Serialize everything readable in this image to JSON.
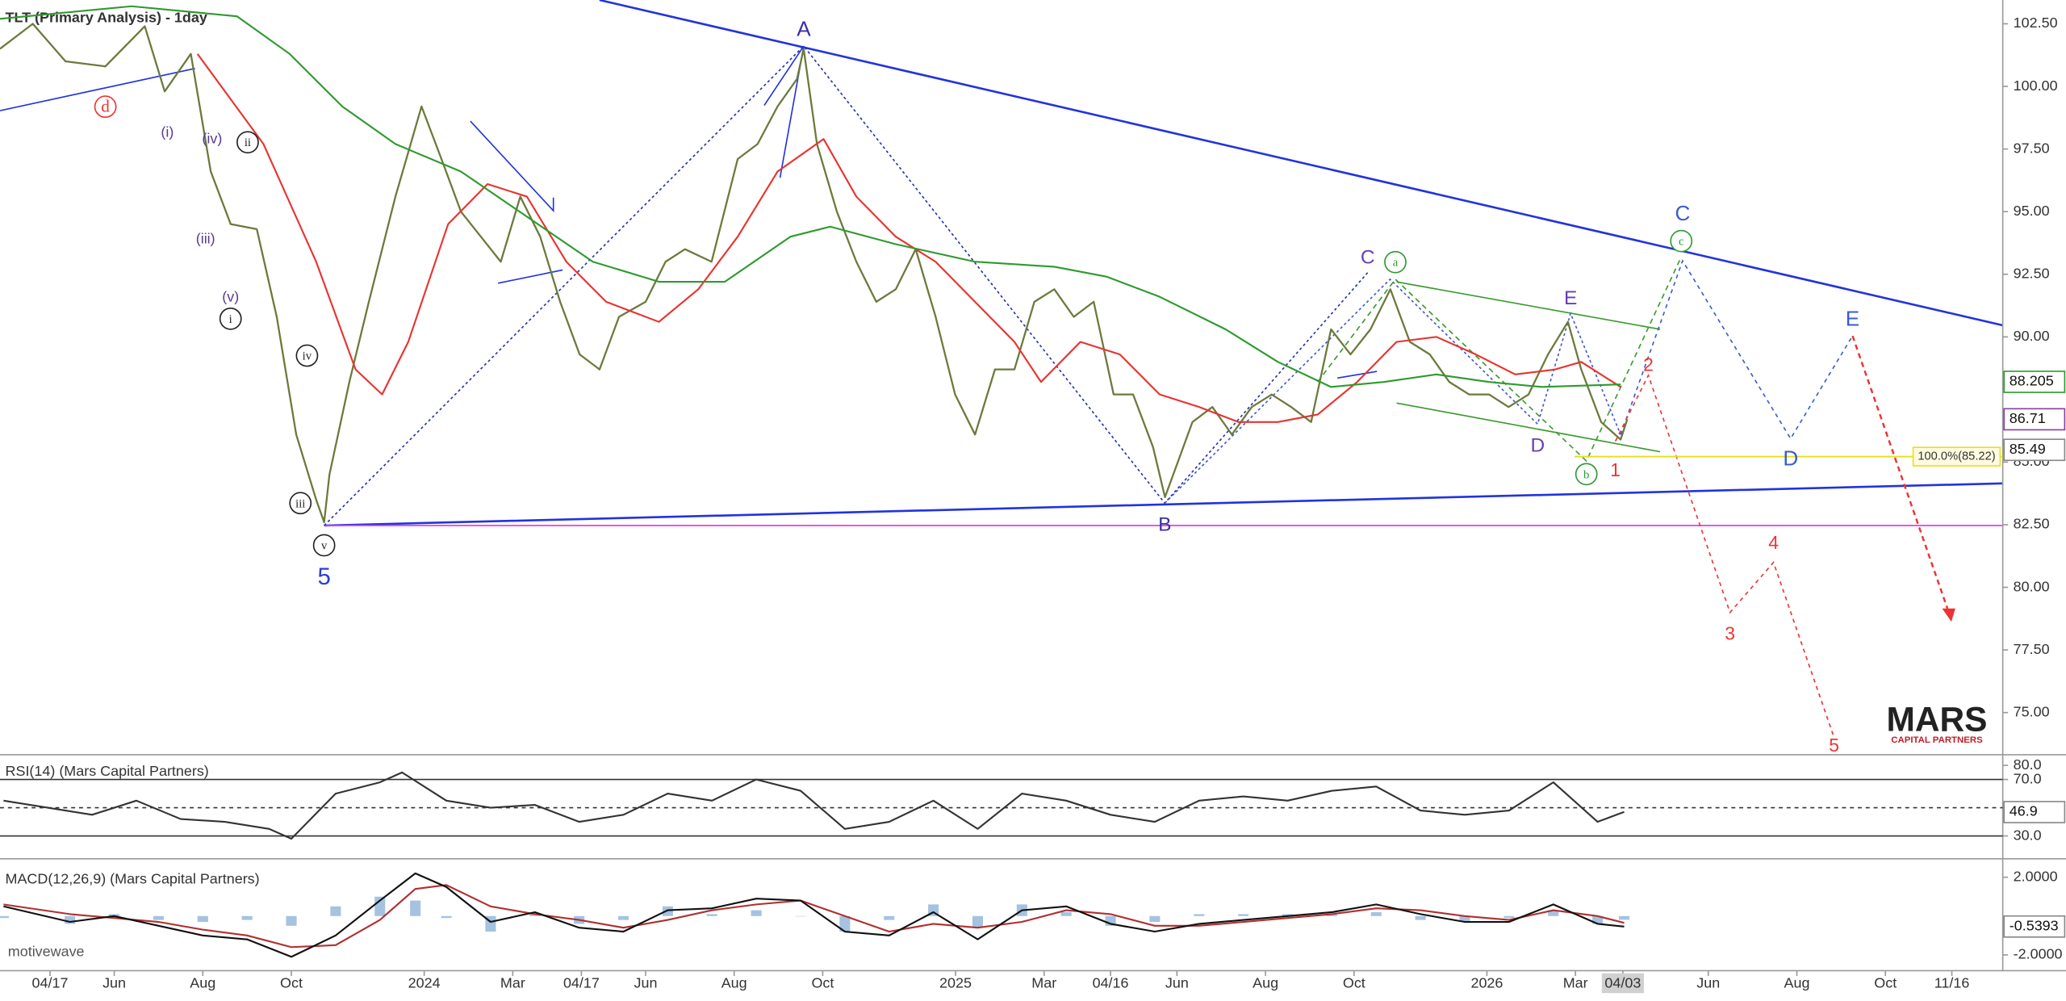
{
  "chart_data": [
    {
      "type": "line",
      "title": "TLT (Primary Analysis) - 1day",
      "xlim": [
        2.42,
        47.65
      ],
      "ylim": [
        73.37,
        103.45
      ],
      "yticks": [
        {
          "value": 102.5,
          "label": "102.50"
        },
        {
          "value": 100,
          "label": "100.00"
        },
        {
          "value": 97.5,
          "label": "97.50"
        },
        {
          "value": 95,
          "label": "95.00"
        },
        {
          "value": 92.5,
          "label": "92.50"
        },
        {
          "value": 90,
          "label": "90.00"
        },
        {
          "value": 85,
          "label": "85.00"
        },
        {
          "value": 82.5,
          "label": "82.50"
        },
        {
          "value": 80,
          "label": "80.00"
        },
        {
          "value": 77.5,
          "label": "77.50"
        },
        {
          "value": 75,
          "label": "75.00"
        }
      ],
      "series": [
        {
          "color": "#6b7a3c",
          "x": [
            2.42,
            3.16,
            3.9,
            4.8,
            5.69,
            6.14,
            6.73,
            7.18,
            7.63,
            8.22,
            8.67,
            9.11,
            9.56,
            9.74,
            9.86,
            10.31,
            10.75,
            11.35,
            11.94,
            12.39,
            12.83,
            13.28,
            13.73,
            14.17,
            14.62,
            15.07,
            15.51,
            15.96,
            16.4,
            17.0,
            17.45,
            17.89,
            18.49,
            19.08,
            19.53,
            19.98,
            20.42,
            20.57,
            20.87,
            21.32,
            21.76,
            22.21,
            22.65,
            23.1,
            23.55,
            23.99,
            24.44,
            24.89,
            25.33,
            25.78,
            26.23,
            26.67,
            27.12,
            27.57,
            28.01,
            28.46,
            28.73,
            29.35,
            29.8,
            30.24,
            30.69,
            31.14,
            31.58,
            32.03,
            32.48,
            32.92,
            33.37,
            33.82,
            34.26,
            34.71,
            35.15,
            35.6,
            36.05,
            36.49,
            36.94,
            37.38,
            37.83,
            38.13,
            38.58,
            39.02,
            39.17
          ],
          "values": [
            101.5,
            102.5,
            101.0,
            100.8,
            102.4,
            99.8,
            101.3,
            96.6,
            94.5,
            94.3,
            90.8,
            86.1,
            83.5,
            82.6,
            84.5,
            88.2,
            91.4,
            95.6,
            99.2,
            97.1,
            95.0,
            94.0,
            93.0,
            95.6,
            94.0,
            91.4,
            89.3,
            88.7,
            90.8,
            91.4,
            93.0,
            93.5,
            93.0,
            97.1,
            97.7,
            99.2,
            100.3,
            101.5,
            97.7,
            95.0,
            93.0,
            91.4,
            91.9,
            93.5,
            90.8,
            87.7,
            86.1,
            88.7,
            88.7,
            91.4,
            91.9,
            90.8,
            91.4,
            87.7,
            87.7,
            85.6,
            83.6,
            86.6,
            87.2,
            86.1,
            87.2,
            87.7,
            87.2,
            86.6,
            90.3,
            89.3,
            90.3,
            91.9,
            89.8,
            89.3,
            88.2,
            87.7,
            87.7,
            87.2,
            87.7,
            89.3,
            90.6,
            88.7,
            86.6,
            85.9,
            86.71
          ]
        },
        {
          "color": "#e8332e",
          "x": [
            6.88,
            8.37,
            9.56,
            10.45,
            11.05,
            11.64,
            12.54,
            13.43,
            14.32,
            15.21,
            16.11,
            17.3,
            18.19,
            19.08,
            19.98,
            21.02,
            21.76,
            22.65,
            23.55,
            24.44,
            25.33,
            25.93,
            26.82,
            27.71,
            28.61,
            29.5,
            30.39,
            31.28,
            32.18,
            33.07,
            33.96,
            34.86,
            35.75,
            36.64,
            37.54,
            38.13,
            39.02
          ],
          "values": [
            101.3,
            97.7,
            93,
            88.7,
            87.7,
            89.8,
            94.5,
            96.1,
            95.6,
            93,
            91.4,
            90.6,
            91.9,
            94,
            96.6,
            97.9,
            95.6,
            94,
            93,
            91.4,
            89.8,
            88.2,
            89.8,
            89.3,
            87.7,
            87.2,
            86.6,
            86.6,
            86.9,
            88.2,
            89.8,
            90,
            89.3,
            88.5,
            88.7,
            89,
            88
          ]
        },
        {
          "color": "#2e9a2e",
          "x": [
            2.42,
            5.39,
            7.77,
            8.96,
            10.15,
            11.35,
            12.83,
            14.32,
            15.81,
            17.3,
            18.79,
            20.27,
            21.17,
            22.65,
            24.44,
            26.23,
            27.42,
            28.61,
            30.1,
            31.28,
            32.48,
            33.67,
            34.86,
            36.05,
            37.24,
            39.02
          ],
          "values": [
            102.7,
            103.2,
            102.8,
            101.3,
            99.2,
            97.7,
            96.6,
            94.8,
            93,
            92.2,
            92.2,
            94,
            94.4,
            93.7,
            93,
            92.8,
            92.4,
            91.6,
            90.3,
            89,
            88,
            88.2,
            88.5,
            88.2,
            88,
            88.1
          ]
        }
      ],
      "levels": [
        {
          "value": 85.22,
          "label": "100.0%(85.22)",
          "color": "#e6e020"
        }
      ],
      "last_values": [
        {
          "value": 88.205,
          "color": "#2e9a2e"
        },
        {
          "value": 86.71,
          "color": "#8a3fa0"
        },
        {
          "value": 85.49,
          "color": "#888888"
        }
      ],
      "annotations": [
        "A",
        "B",
        "C",
        "D",
        "E",
        "5",
        "C",
        "D",
        "E",
        "1",
        "2",
        "3",
        "4",
        "5",
        "d",
        "(i)",
        "(iii)",
        "(iv)",
        "(v)",
        "ii",
        "i",
        "iv",
        "iii",
        "v",
        "a",
        "b",
        "c"
      ]
    },
    {
      "type": "line",
      "title": "RSI(14) (Mars Capital Partners)",
      "xlim": [
        2.42,
        47.65
      ],
      "ylim": [
        15.7,
        85.7
      ],
      "yticks": [
        {
          "value": 80,
          "label": "80.0"
        },
        {
          "value": 70,
          "label": "70.0"
        },
        {
          "value": 30,
          "label": "30.0"
        }
      ],
      "reference_lines": [
        {
          "value": 70,
          "dashed": false
        },
        {
          "value": 50,
          "dashed": true
        },
        {
          "value": 30,
          "dashed": false
        }
      ],
      "series": [
        {
          "color": "#333333",
          "x": [
            2.5,
            3.5,
            4.5,
            5.5,
            6.5,
            7.5,
            8.5,
            9.0,
            10,
            11,
            11.5,
            12.5,
            13.5,
            14.5,
            15.5,
            16.5,
            17.5,
            18.5,
            19.5,
            20.5,
            21.5,
            22.5,
            23.5,
            24.5,
            25.5,
            26.5,
            27.5,
            28.5,
            29.5,
            30.5,
            31.5,
            32.5,
            33.5,
            34.5,
            35.5,
            36.5,
            37.5,
            38.5,
            39.1
          ],
          "values": [
            55,
            50,
            45,
            55,
            42,
            40,
            35,
            28,
            60,
            68,
            75,
            55,
            50,
            52,
            40,
            45,
            60,
            55,
            70,
            62,
            35,
            40,
            55,
            35,
            60,
            55,
            45,
            40,
            55,
            58,
            55,
            62,
            65,
            48,
            45,
            48,
            68,
            40,
            47
          ]
        }
      ],
      "last_values": [
        {
          "value": 46.9,
          "color": "#888888"
        }
      ]
    },
    {
      "type": "line",
      "title": "MACD(12,26,9) (Mars Capital Partners)",
      "xlim": [
        2.42,
        47.65
      ],
      "ylim": [
        -2.68,
        2.75
      ],
      "yticks": [
        {
          "value": 2,
          "label": "2.0000"
        },
        {
          "value": -2,
          "label": "-2.0000"
        }
      ],
      "xticks": [
        {
          "value": 3.55,
          "label": "04/17"
        },
        {
          "value": 5,
          "label": "Jun"
        },
        {
          "value": 7,
          "label": "Aug"
        },
        {
          "value": 9,
          "label": "Oct"
        },
        {
          "value": 12,
          "label": "2024"
        },
        {
          "value": 14,
          "label": "Mar"
        },
        {
          "value": 15.55,
          "label": "04/17"
        },
        {
          "value": 17,
          "label": "Jun"
        },
        {
          "value": 19,
          "label": "Aug"
        },
        {
          "value": 21,
          "label": "Oct"
        },
        {
          "value": 24,
          "label": "2025"
        },
        {
          "value": 26,
          "label": "Mar"
        },
        {
          "value": 27.5,
          "label": "04/16"
        },
        {
          "value": 29,
          "label": "Jun"
        },
        {
          "value": 31,
          "label": "Aug"
        },
        {
          "value": 33,
          "label": "Oct"
        },
        {
          "value": 36,
          "label": "2026"
        },
        {
          "value": 38,
          "label": "Mar"
        },
        {
          "value": 39.07,
          "label": "04/03",
          "highlight": true
        },
        {
          "value": 41,
          "label": "Jun"
        },
        {
          "value": 43,
          "label": "Aug"
        },
        {
          "value": 45,
          "label": "Oct"
        },
        {
          "value": 46.5,
          "label": "11/16"
        }
      ],
      "series": [
        {
          "color": "#8fb3d9",
          "kind": "bar",
          "x": [
            2.5,
            4,
            5,
            6,
            7,
            8,
            9,
            10,
            11,
            11.8,
            12.5,
            13.5,
            14.5,
            15.5,
            16.5,
            17.5,
            18.5,
            19.5,
            20.5,
            21.5,
            22.5,
            23.5,
            24.5,
            25.5,
            26.5,
            27.5,
            28.5,
            29.5,
            30.5,
            31.5,
            32.5,
            33.5,
            34.5,
            35.5,
            36.5,
            37.5,
            38.5,
            39.1
          ],
          "values": [
            -0.1,
            -0.4,
            0.1,
            -0.2,
            -0.3,
            -0.2,
            -0.5,
            0.5,
            1.0,
            0.8,
            -0.1,
            -0.8,
            0.1,
            -0.4,
            -0.2,
            0.5,
            0.1,
            0.3,
            0,
            -0.8,
            -0.2,
            0.6,
            -0.6,
            0.6,
            0.2,
            -0.5,
            -0.3,
            0.1,
            0.1,
            0.1,
            0.1,
            0.2,
            -0.2,
            -0.3,
            -0.1,
            0.3,
            -0.4,
            -0.19
          ]
        },
        {
          "color": "#b03030",
          "x": [
            2.5,
            4,
            5,
            6,
            7,
            8,
            9,
            10,
            11,
            11.8,
            12.5,
            13.5,
            14.5,
            15.5,
            16.5,
            17.5,
            18.5,
            19.5,
            20.5,
            21.5,
            22.5,
            23.5,
            24.5,
            25.5,
            26.5,
            27.5,
            28.5,
            29.5,
            30.5,
            31.5,
            32.5,
            33.5,
            34.5,
            35.5,
            36.5,
            37.5,
            38.5,
            39.1
          ],
          "values": [
            0.6,
            0.1,
            -0.1,
            -0.3,
            -0.7,
            -1.0,
            -1.6,
            -1.5,
            -0.2,
            1.4,
            1.6,
            0.5,
            0.1,
            -0.2,
            -0.6,
            -0.2,
            0.3,
            0.6,
            0.8,
            0.0,
            -0.8,
            -0.4,
            -0.6,
            -0.3,
            0.3,
            0.1,
            -0.5,
            -0.5,
            -0.3,
            -0.1,
            0.1,
            0.4,
            0.3,
            0.0,
            -0.2,
            0.3,
            0.0,
            -0.35
          ]
        },
        {
          "color": "#111111",
          "x": [
            2.5,
            4,
            5,
            6,
            7,
            8,
            9,
            10,
            11,
            11.8,
            12.5,
            13.5,
            14.5,
            15.5,
            16.5,
            17.5,
            18.5,
            19.5,
            20.5,
            21.5,
            22.5,
            23.5,
            24.5,
            25.5,
            26.5,
            27.5,
            28.5,
            29.5,
            30.5,
            31.5,
            32.5,
            33.5,
            34.5,
            35.5,
            36.5,
            37.5,
            38.5,
            39.1
          ],
          "values": [
            0.5,
            -0.3,
            0,
            -0.5,
            -1.0,
            -1.2,
            -2.1,
            -1.0,
            0.8,
            2.2,
            1.5,
            -0.3,
            0.2,
            -0.6,
            -0.8,
            0.3,
            0.4,
            0.9,
            0.8,
            -0.8,
            -1.0,
            0.2,
            -1.2,
            0.3,
            0.5,
            -0.4,
            -0.8,
            -0.4,
            -0.2,
            0.0,
            0.2,
            0.6,
            0.1,
            -0.3,
            -0.3,
            0.6,
            -0.4,
            -0.54
          ]
        }
      ],
      "last_values": [
        {
          "value": -0.5393,
          "color": "#888888"
        }
      ]
    }
  ],
  "logo": {
    "name": "MARS",
    "tagline": "CAPITAL PARTNERS"
  },
  "watermark": "motivewave"
}
